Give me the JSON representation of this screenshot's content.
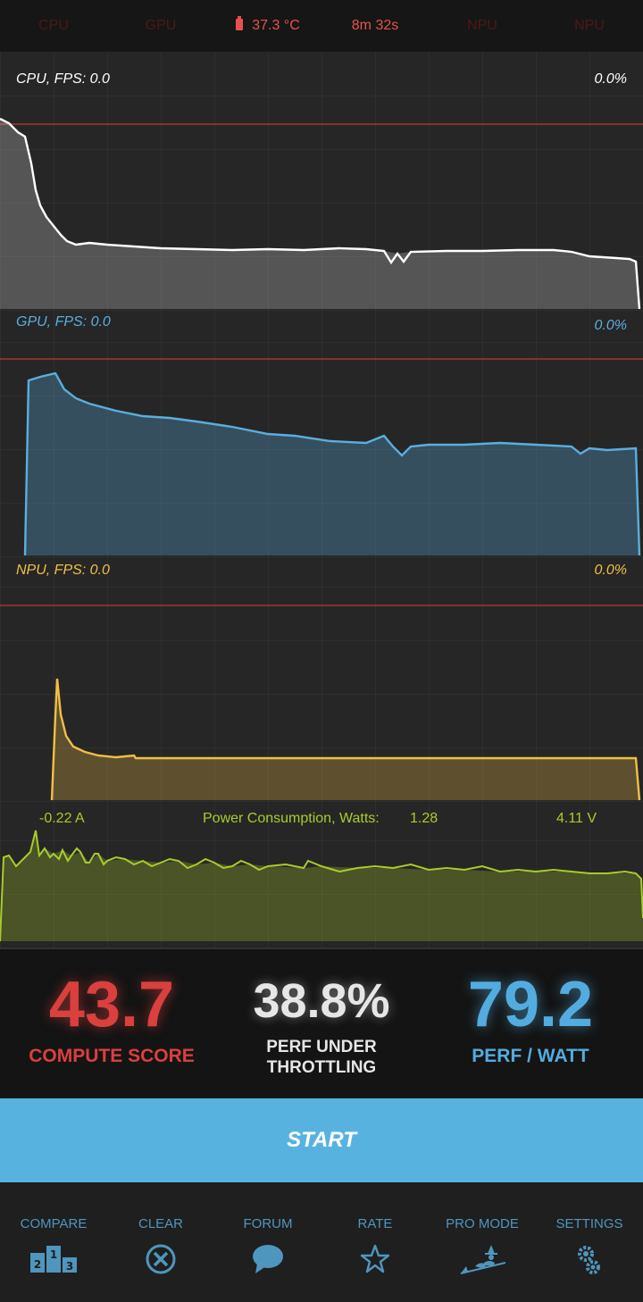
{
  "status": {
    "cpu": "CPU",
    "gpu": "GPU",
    "temperature": "37.3 °C",
    "elapsed": "8m 32s",
    "npu1": "NPU",
    "npu2": "NPU"
  },
  "cpu_panel": {
    "label": "CPU, FPS:  0.0",
    "value": "0.0%",
    "color": "#ffffff"
  },
  "gpu_panel": {
    "label": "GPU, FPS:  0.0",
    "value": "0.0%",
    "color": "#5aaee0"
  },
  "npu_panel": {
    "label": "NPU, FPS:  0.0",
    "value": "0.0%",
    "color": "#f2bf45"
  },
  "power": {
    "current": "-0.22 A",
    "title": "Power Consumption, Watts:",
    "watts": "1.28",
    "voltage": "4.11 V",
    "color": "#a8cc2a"
  },
  "scores": {
    "compute": {
      "value": "43.7",
      "label": "COMPUTE SCORE",
      "color": "#d9403e"
    },
    "throttle": {
      "value": "38.8%",
      "label1": "PERF UNDER",
      "label2": "THROTTLING",
      "color": "#e6e6e6"
    },
    "perf_watt": {
      "value": "79.2",
      "label": "PERF / WATT",
      "color": "#53ace0"
    }
  },
  "start_label": "START",
  "nav": [
    {
      "label": "COMPARE",
      "icon": "podium-icon"
    },
    {
      "label": "CLEAR",
      "icon": "clear-circle-icon"
    },
    {
      "label": "FORUM",
      "icon": "speech-bubble-icon"
    },
    {
      "label": "RATE",
      "icon": "star-icon"
    },
    {
      "label": "PRO MODE",
      "icon": "witch-icon"
    },
    {
      "label": "SETTINGS",
      "icon": "gear-icon"
    }
  ]
}
